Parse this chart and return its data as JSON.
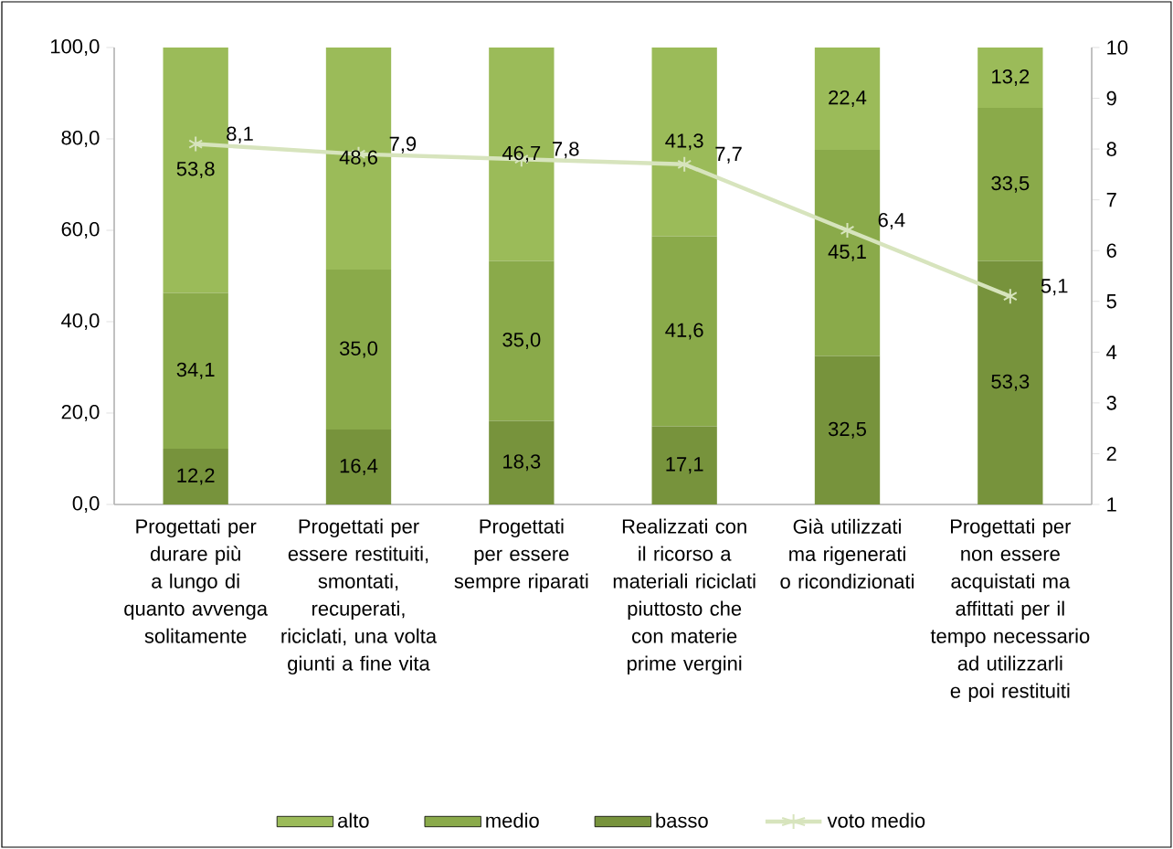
{
  "chart_data": {
    "type": "bar",
    "stacked": true,
    "categories": [
      "Progettati per durare più a lungo di quanto avvenga solitamente",
      "Progettati per essere restituiti, smontati, recuperati, riciclati, una volta giunti a fine vita",
      "Progettati per essere sempre riparati",
      "Realizzati con il ricorso a materiali riciclati piuttosto che con materie prime vergini",
      "Già utilizzati ma rigenerati o ricondizionati",
      "Progettati per non essere acquistati ma affittati per il tempo necessario ad utilizzarli e poi restituiti"
    ],
    "series": [
      {
        "name": "basso",
        "color": "#77933c",
        "values": [
          12.2,
          16.4,
          18.3,
          17.1,
          32.5,
          53.3
        ],
        "value_labels": [
          "12,2",
          "16,4",
          "18,3",
          "17,1",
          "32,5",
          "53,3"
        ]
      },
      {
        "name": "medio",
        "color": "#8aaa4a",
        "values": [
          34.1,
          35.0,
          35.0,
          41.6,
          45.1,
          33.5
        ],
        "value_labels": [
          "34,1",
          "35,0",
          "35,0",
          "41,6",
          "45,1",
          "33,5"
        ]
      },
      {
        "name": "alto",
        "color": "#9bbb59",
        "values": [
          53.8,
          48.6,
          46.7,
          41.3,
          22.4,
          13.2
        ],
        "value_labels": [
          "53,8",
          "48,6",
          "46,7",
          "41,3",
          "22,4",
          "13,2"
        ]
      },
      {
        "name": "voto medio",
        "type": "line",
        "axis": "y2",
        "color": "#d7e4bd",
        "marker": "cross",
        "values": [
          8.1,
          7.9,
          7.8,
          7.7,
          6.4,
          5.1
        ],
        "value_labels": [
          "8,1",
          "7,9",
          "7,8",
          "7,7",
          "6,4",
          "5,1"
        ]
      }
    ],
    "ylim": [
      0,
      100
    ],
    "yticks": [
      {
        "value": 0,
        "label": "0,0"
      },
      {
        "value": 20,
        "label": "20,0"
      },
      {
        "value": 40,
        "label": "40,0"
      },
      {
        "value": 60,
        "label": "60,0"
      },
      {
        "value": 80,
        "label": "80,0"
      },
      {
        "value": 100,
        "label": "100,0"
      }
    ],
    "y2lim": [
      1,
      10
    ],
    "y2ticks": [
      1,
      2,
      3,
      4,
      5,
      6,
      7,
      8,
      9,
      10
    ],
    "grid": false,
    "legend": "bottom"
  }
}
